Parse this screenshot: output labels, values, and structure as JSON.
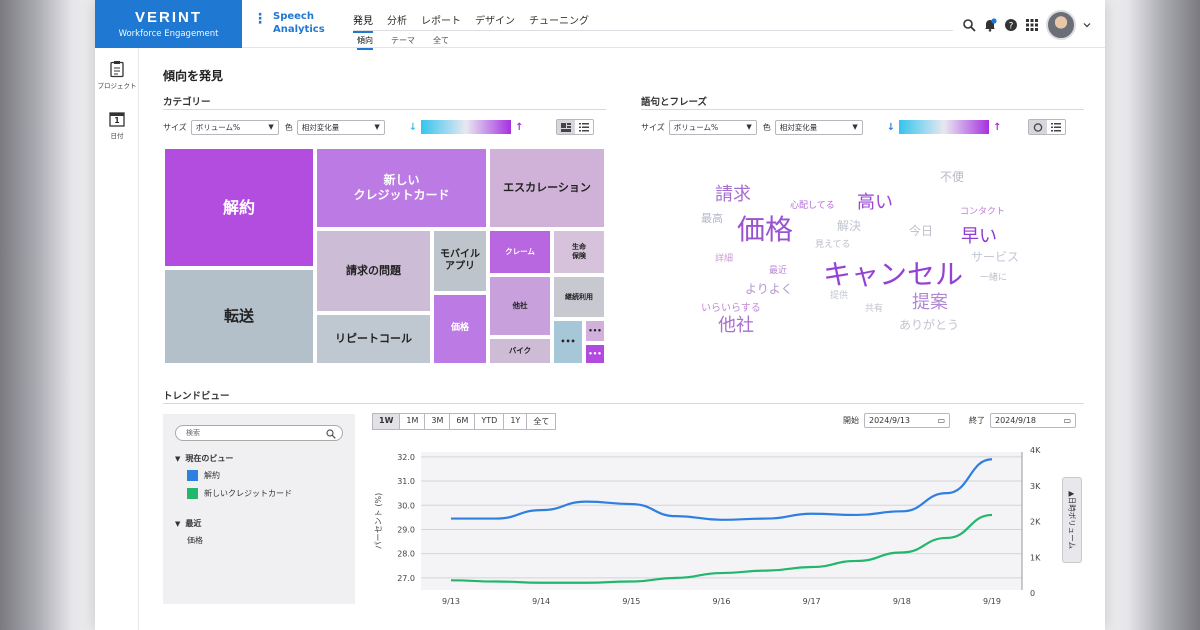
{
  "brand": {
    "logo": "VERINT",
    "subtitle": "Workforce Engagement"
  },
  "product": {
    "line1": "Speech",
    "line2": "Analytics"
  },
  "nav": {
    "main": [
      "発見",
      "分析",
      "レポート",
      "デザイン",
      "チューニング"
    ],
    "main_active": 0,
    "sub": [
      "傾向",
      "テーマ",
      "全て"
    ],
    "sub_active": 0
  },
  "header_icons": [
    "search-icon",
    "bell-icon",
    "help-icon",
    "apps-grid-icon",
    "user-avatar"
  ],
  "rail": [
    {
      "label": "プロジェクト",
      "icon": "clipboard-icon"
    },
    {
      "label": "日付",
      "icon": "calendar-icon",
      "day": "1"
    }
  ],
  "page_title": "傾向を発見",
  "categories": {
    "title": "カテゴリー",
    "size_label": "サイズ",
    "size_value": "ボリューム%",
    "color_label": "色",
    "color_value": "相対変化量",
    "colors": {
      "low": "#35c4ee",
      "high": "#a532e0"
    },
    "tiles": [
      {
        "label": "解約",
        "color": "#b34de0"
      },
      {
        "label": "転送",
        "color": "#b3c0ca"
      },
      {
        "label": "新しい\nクレジットカード",
        "color": "#bb7ae4"
      },
      {
        "label": "請求の問題",
        "color": "#cdbcd6"
      },
      {
        "label": "リピートコール",
        "color": "#bfc7d0"
      },
      {
        "label": "モバイル\nアプリ",
        "color": "#bec4cc"
      },
      {
        "label": "価格",
        "color": "#bb7ae4"
      },
      {
        "label": "エスカレーション",
        "color": "#d0b2d9"
      },
      {
        "label": "クレーム",
        "color": "#b867e0"
      },
      {
        "label": "生命\n保険",
        "color": "#d7c2dc"
      },
      {
        "label": "他社",
        "color": "#c8a1dc"
      },
      {
        "label": "継続利用",
        "color": "#c8c9d0"
      },
      {
        "label": "バイク",
        "color": "#cebbd6"
      },
      {
        "label": "•••",
        "color": "#a5c7d8"
      },
      {
        "label": "•••",
        "color": "#d2b0dc"
      },
      {
        "label": "•••",
        "color": "#b24ae0"
      }
    ]
  },
  "phrases": {
    "title": "語句とフレーズ",
    "size_label": "サイズ",
    "size_value": "ボリューム%",
    "color_label": "色",
    "color_value": "相対変化量",
    "words": [
      {
        "text": "請求",
        "color": "#a56fd0"
      },
      {
        "text": "心配してる",
        "color": "#b46ad8"
      },
      {
        "text": "高い",
        "color": "#9a45d4"
      },
      {
        "text": "不便",
        "color": "#b9bac4"
      },
      {
        "text": "最高",
        "color": "#b2b7cc"
      },
      {
        "text": "価格",
        "color": "#9b52cf"
      },
      {
        "text": "解決",
        "color": "#c0c4d0"
      },
      {
        "text": "コンタクト",
        "color": "#bf7fd8"
      },
      {
        "text": "今日",
        "color": "#bdbfc8"
      },
      {
        "text": "早い",
        "color": "#8f3ad0"
      },
      {
        "text": "見えてる",
        "color": "#bdbdc8"
      },
      {
        "text": "サービス",
        "color": "#c2c6d4"
      },
      {
        "text": "詳細",
        "color": "#c99ad9"
      },
      {
        "text": "最近",
        "color": "#b98ad3"
      },
      {
        "text": "キャンセル",
        "color": "#9442d4"
      },
      {
        "text": "一緒に",
        "color": "#c0c0cc"
      },
      {
        "text": "よりよく",
        "color": "#b596d0"
      },
      {
        "text": "提供",
        "color": "#c3c6d2"
      },
      {
        "text": "提案",
        "color": "#b187d6"
      },
      {
        "text": "いらいらする",
        "color": "#c08ad5"
      },
      {
        "text": "共有",
        "color": "#c0c3cf"
      },
      {
        "text": "他社",
        "color": "#a96ed0"
      },
      {
        "text": "ありがとう",
        "color": "#c1c3cf"
      }
    ]
  },
  "trend": {
    "title": "トレンドビュー",
    "search_placeholder": "検索",
    "current_view_label": "現在のビュー",
    "current_items": [
      {
        "label": "解約",
        "color": "#2f7fe0"
      },
      {
        "label": "新しいクレジットカード",
        "color": "#23b66c"
      }
    ],
    "recent_label": "最近",
    "recent_items": [
      "価格"
    ],
    "ranges": [
      "1W",
      "1M",
      "3M",
      "6M",
      "YTD",
      "1Y",
      "全て"
    ],
    "range_active": 0,
    "start_label": "開始",
    "start_value": "2024/9/13",
    "end_label": "終了",
    "end_value": "2024/9/18",
    "date_list_label": "▲日時ボリューム"
  },
  "chart_data": {
    "type": "line",
    "x": [
      "9/13",
      "9/14",
      "9/15",
      "9/16",
      "9/17",
      "9/18",
      "9/19"
    ],
    "ylabel": "パーセント (%)",
    "ylim": [
      26.5,
      32.2
    ],
    "yticks": [
      27.0,
      28.0,
      29.0,
      30.0,
      31.0,
      32.0
    ],
    "y2lim": [
      0,
      4000
    ],
    "y2ticks": [
      "0",
      "1K",
      "2K",
      "3K",
      "4K"
    ],
    "series": [
      {
        "name": "解約",
        "color": "#2f7fe0",
        "axis": "left",
        "points": [
          [
            0,
            29.45
          ],
          [
            0.5,
            29.45
          ],
          [
            1.0,
            29.8
          ],
          [
            1.5,
            30.15
          ],
          [
            2.0,
            30.05
          ],
          [
            2.5,
            29.55
          ],
          [
            3.0,
            29.4
          ],
          [
            3.5,
            29.45
          ],
          [
            4.0,
            29.65
          ],
          [
            4.5,
            29.6
          ],
          [
            5.0,
            29.75
          ],
          [
            5.5,
            30.5
          ],
          [
            6.0,
            31.9
          ]
        ]
      },
      {
        "name": "新しいクレジットカード",
        "color": "#23b66c",
        "axis": "left",
        "points": [
          [
            0,
            26.9
          ],
          [
            0.5,
            26.85
          ],
          [
            1.0,
            26.8
          ],
          [
            1.5,
            26.8
          ],
          [
            2.0,
            26.85
          ],
          [
            2.5,
            27.0
          ],
          [
            3.0,
            27.2
          ],
          [
            3.5,
            27.3
          ],
          [
            4.0,
            27.45
          ],
          [
            4.5,
            27.7
          ],
          [
            5.0,
            28.05
          ],
          [
            5.5,
            28.65
          ],
          [
            6.0,
            29.6
          ]
        ]
      }
    ],
    "grid": true
  }
}
